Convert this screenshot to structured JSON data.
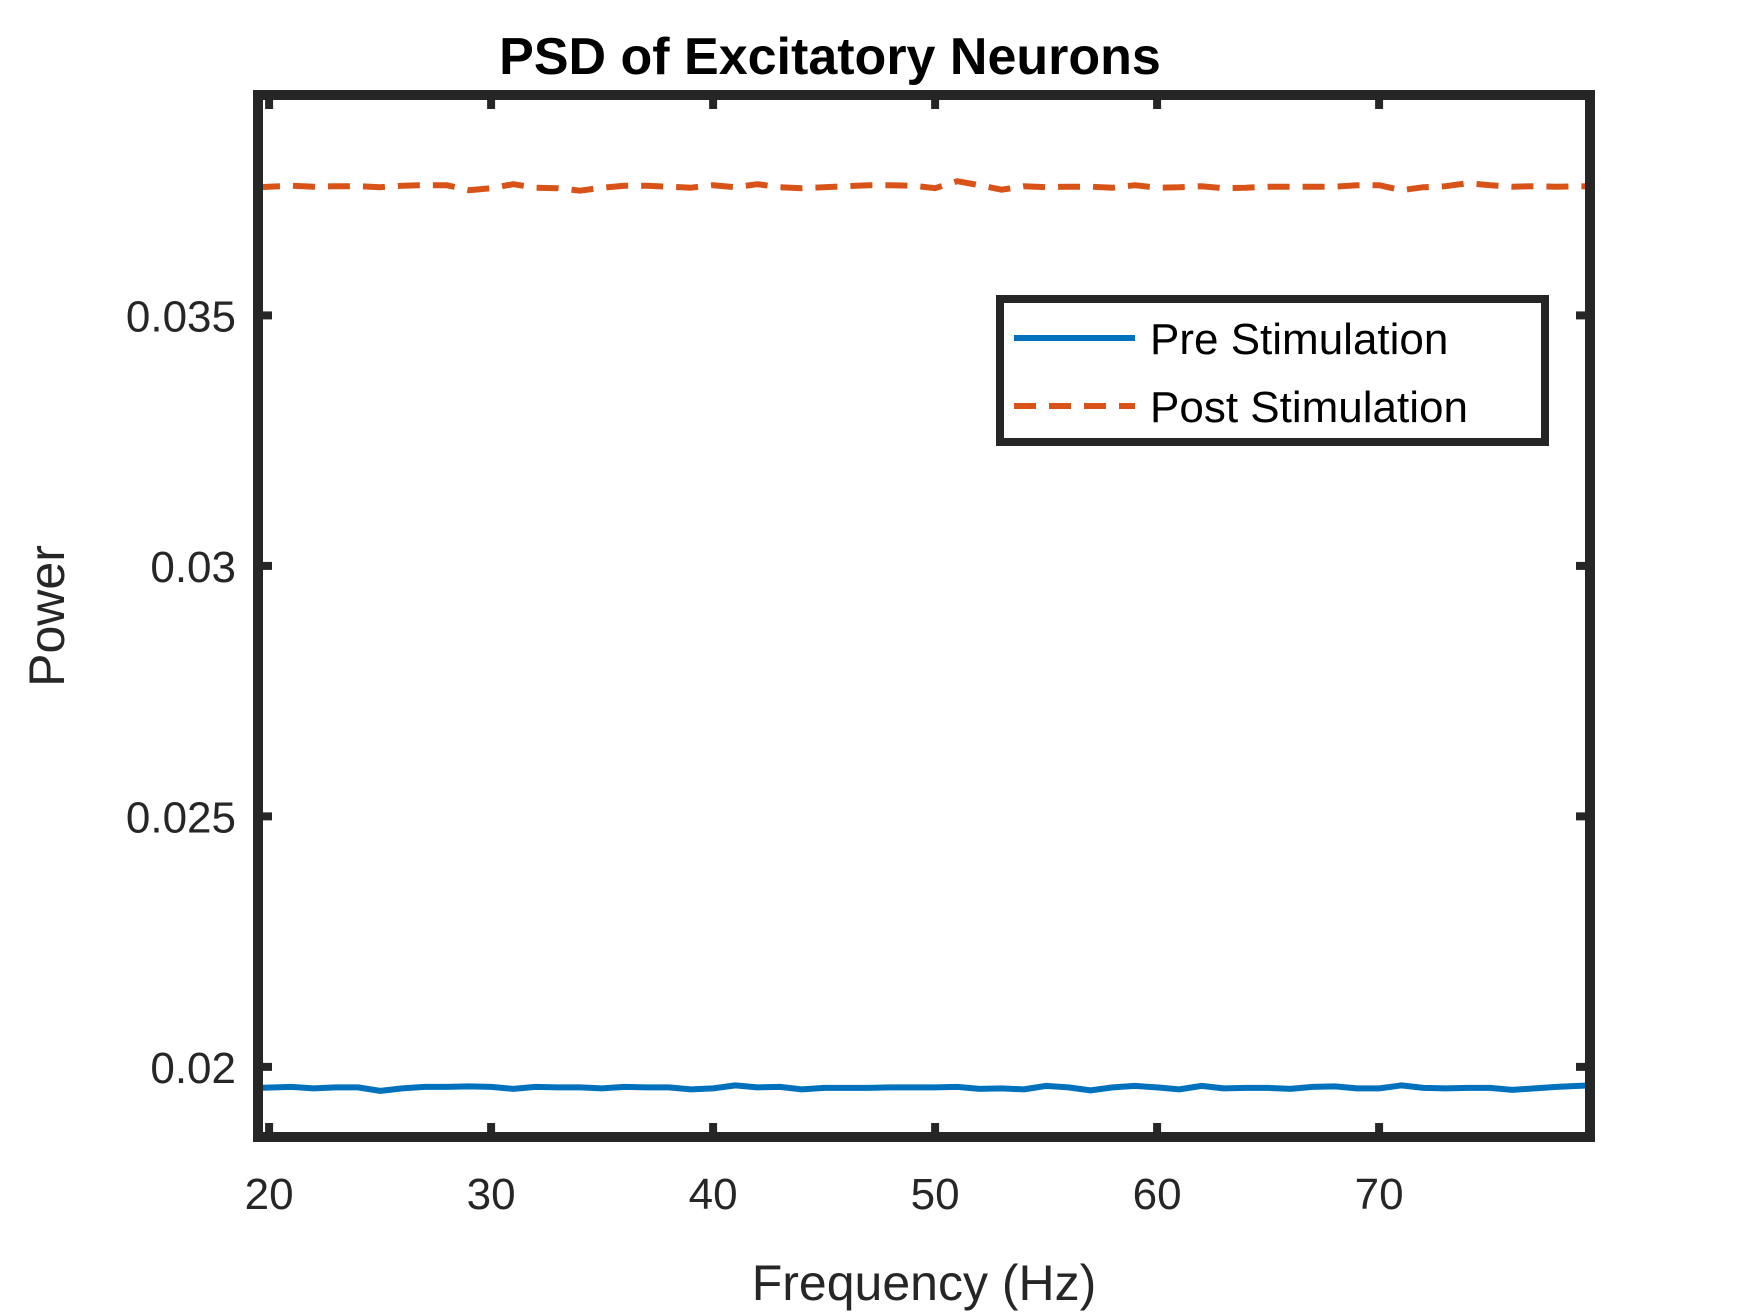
{
  "chart_data": {
    "type": "line",
    "title": "PSD of Excitatory Neurons",
    "xlabel": "Frequency (Hz)",
    "ylabel": "Power",
    "xlim": [
      19.5,
      79.5
    ],
    "ylim": [
      0.0186,
      0.0394
    ],
    "xticks": [
      20,
      30,
      40,
      50,
      60,
      70
    ],
    "xtick_labels": [
      "20",
      "30",
      "40",
      "50",
      "60",
      "70"
    ],
    "yticks": [
      0.02,
      0.025,
      0.03,
      0.035
    ],
    "ytick_labels": [
      "0.02",
      "0.025",
      "0.03",
      "0.035"
    ],
    "grid": false,
    "legend_position": "top-right",
    "x": [
      19.5,
      21,
      22,
      23,
      24,
      25,
      26,
      27,
      28,
      29,
      30,
      31,
      32,
      33,
      34,
      35,
      36,
      37,
      38,
      39,
      40,
      41,
      42,
      43,
      44,
      45,
      46,
      47,
      48,
      49,
      50,
      51,
      52,
      53,
      54,
      55,
      56,
      57,
      58,
      59,
      60,
      61,
      62,
      63,
      64,
      65,
      66,
      67,
      68,
      69,
      70,
      71,
      72,
      73,
      74,
      75,
      76,
      77,
      78,
      79.5
    ],
    "series": [
      {
        "name": "Pre Stimulation",
        "color": "#0072BD",
        "style": "solid",
        "values": [
          0.01958,
          0.0196,
          0.01957,
          0.01959,
          0.01959,
          0.01952,
          0.01957,
          0.0196,
          0.0196,
          0.01961,
          0.0196,
          0.01956,
          0.0196,
          0.01959,
          0.01959,
          0.01957,
          0.0196,
          0.01959,
          0.01959,
          0.01955,
          0.01957,
          0.01963,
          0.01959,
          0.0196,
          0.01955,
          0.01958,
          0.01958,
          0.01958,
          0.01959,
          0.01959,
          0.01959,
          0.0196,
          0.01956,
          0.01957,
          0.01955,
          0.01962,
          0.01959,
          0.01953,
          0.01959,
          0.01962,
          0.01959,
          0.01955,
          0.01962,
          0.01957,
          0.01958,
          0.01958,
          0.01956,
          0.0196,
          0.01961,
          0.01957,
          0.01957,
          0.01963,
          0.01958,
          0.01957,
          0.01958,
          0.01958,
          0.01954,
          0.01957,
          0.0196,
          0.01963
        ]
      },
      {
        "name": "Post Stimulation",
        "color": "#D95319",
        "style": "dashed",
        "values": [
          0.03756,
          0.03759,
          0.03757,
          0.03758,
          0.03758,
          0.03756,
          0.03759,
          0.0376,
          0.0376,
          0.0375,
          0.03754,
          0.03762,
          0.03755,
          0.03754,
          0.03749,
          0.03755,
          0.03759,
          0.03759,
          0.03757,
          0.03755,
          0.0376,
          0.03756,
          0.03762,
          0.03756,
          0.03754,
          0.03756,
          0.03758,
          0.0376,
          0.0376,
          0.03759,
          0.03754,
          0.03768,
          0.0376,
          0.03751,
          0.03758,
          0.03756,
          0.03757,
          0.03757,
          0.03755,
          0.0376,
          0.03755,
          0.03756,
          0.03758,
          0.03754,
          0.03755,
          0.03757,
          0.03757,
          0.03757,
          0.03757,
          0.0376,
          0.0376,
          0.0375,
          0.03756,
          0.03758,
          0.03764,
          0.0376,
          0.03757,
          0.03758,
          0.03757,
          0.03758
        ]
      }
    ]
  }
}
